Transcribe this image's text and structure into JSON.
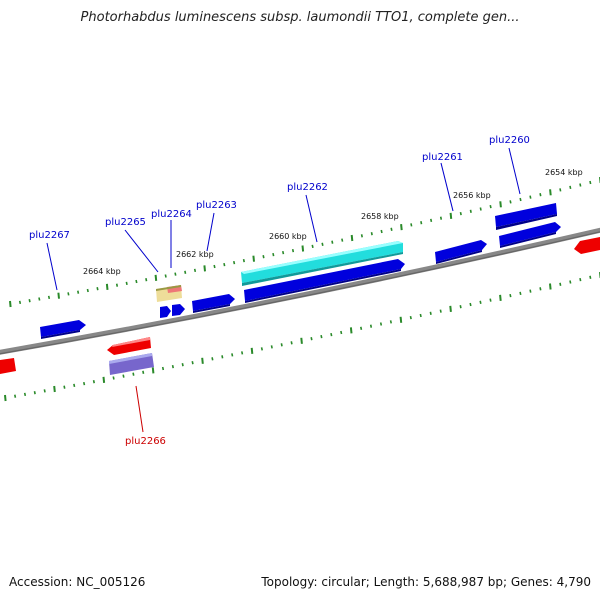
{
  "title": "Photorhabdus luminescens subsp. laumondii TTO1, complete gen...",
  "footer": {
    "accession": "Accession: NC_005126",
    "summary": "Topology: circular; Length: 5,688,987 bp; Genes: 4,790"
  },
  "colors": {
    "forward_gene": "#0000dd",
    "reverse_gene": "#ee0000",
    "highlight_gene": "#22dddd",
    "purple_gene": "#7766cc",
    "tan_gene": "#eedd99",
    "backbone": "#888888",
    "tick": "#2a8a2a",
    "forward_label": "#0000cc",
    "reverse_label": "#cc0000"
  },
  "ruler_labels": [
    "2664 kbp",
    "2662 kbp",
    "2660 kbp",
    "2658 kbp",
    "2656 kbp",
    "2654 kbp"
  ],
  "gene_labels": [
    "plu2267",
    "plu2265",
    "plu2264",
    "plu2263",
    "plu2262",
    "plu2261",
    "plu2260",
    "plu2266"
  ]
}
